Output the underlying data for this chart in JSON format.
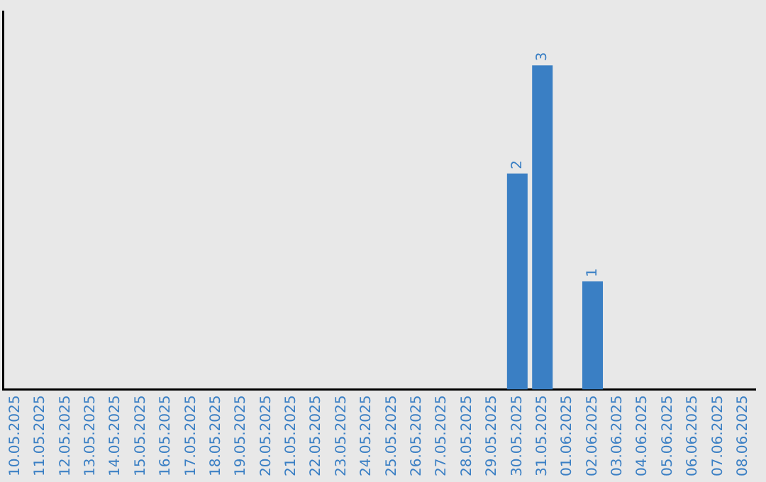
{
  "chart_data": {
    "type": "bar",
    "categories": [
      "10.05.2025",
      "11.05.2025",
      "12.05.2025",
      "13.05.2025",
      "14.05.2025",
      "15.05.2025",
      "16.05.2025",
      "17.05.2025",
      "18.05.2025",
      "19.05.2025",
      "20.05.2025",
      "21.05.2025",
      "22.05.2025",
      "23.05.2025",
      "24.05.2025",
      "25.05.2025",
      "26.05.2025",
      "27.05.2025",
      "28.05.2025",
      "29.05.2025",
      "30.05.2025",
      "31.05.2025",
      "01.06.2025",
      "02.06.2025",
      "03.06.2025",
      "04.06.2025",
      "05.06.2025",
      "06.06.2025",
      "07.06.2025",
      "08.06.2025"
    ],
    "values": [
      null,
      null,
      null,
      null,
      null,
      null,
      null,
      null,
      null,
      null,
      null,
      null,
      null,
      null,
      null,
      null,
      null,
      null,
      null,
      null,
      2,
      3,
      null,
      1,
      null,
      null,
      null,
      null,
      null,
      null
    ],
    "color": "#3a7fc4",
    "data_labels": true,
    "grid": false,
    "legend": false
  }
}
